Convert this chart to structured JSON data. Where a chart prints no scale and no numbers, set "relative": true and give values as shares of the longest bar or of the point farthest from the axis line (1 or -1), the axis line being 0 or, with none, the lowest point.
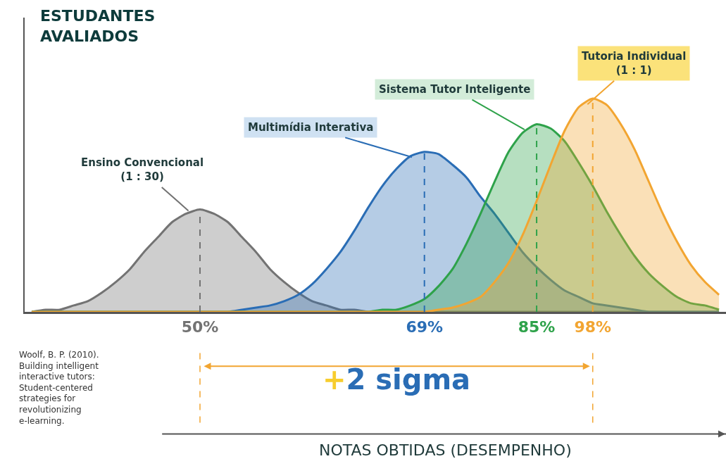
{
  "chart_data": {
    "type": "area",
    "relative": true,
    "ylabel": "ESTUDANTES\nAVALIADOS",
    "legend": false,
    "grid": false,
    "line_style": "solid",
    "marker": "none",
    "categories": [
      null,
      null,
      null,
      null,
      null,
      null,
      null,
      null,
      null,
      null,
      null,
      null,
      "50%",
      null,
      null,
      null,
      null,
      null,
      null,
      null,
      null,
      null,
      null,
      null,
      null,
      null,
      null,
      null,
      "69%",
      null,
      null,
      null,
      null,
      null,
      null,
      null,
      "85%",
      null,
      null,
      null,
      "98%",
      null,
      null,
      null,
      null,
      null,
      null,
      null,
      null,
      null
    ],
    "series": [
      {
        "name": "Ensino Convencional\n(1 : 30)",
        "color": "#737373",
        "values": [
          0,
          0.01,
          0.01,
          0.03,
          0.05,
          0.09,
          0.14,
          0.2,
          0.28,
          0.35,
          0.42,
          0.46,
          0.48,
          0.46,
          0.42,
          0.35,
          0.28,
          0.2,
          0.14,
          0.09,
          0.05,
          0.03,
          0.01,
          0.01,
          0,
          0,
          0,
          0,
          0,
          0,
          0,
          0,
          0,
          0,
          0,
          0,
          0,
          0,
          0,
          0,
          0,
          0,
          0,
          0,
          0,
          0,
          0,
          0,
          0,
          0
        ]
      },
      {
        "name": "Multimídia Interativa",
        "color": "#2a6db5",
        "values": [
          0,
          0,
          0,
          0,
          0,
          0,
          0,
          0,
          0,
          0,
          0,
          0,
          0,
          0,
          0,
          0.01,
          0.02,
          0.03,
          0.05,
          0.08,
          0.13,
          0.2,
          0.28,
          0.38,
          0.49,
          0.59,
          0.67,
          0.73,
          0.75,
          0.74,
          0.69,
          0.63,
          0.54,
          0.46,
          0.37,
          0.28,
          0.21,
          0.15,
          0.1,
          0.07,
          0.04,
          0.03,
          0.02,
          0.01,
          0,
          0,
          0,
          0,
          0,
          0
        ]
      },
      {
        "name": "Sistema Tutor Inteligente",
        "color": "#2ea24a",
        "values": [
          0,
          0,
          0,
          0,
          0,
          0,
          0,
          0,
          0,
          0,
          0,
          0,
          0,
          0,
          0,
          0,
          0,
          0,
          0,
          0,
          0,
          0,
          0,
          0,
          0,
          0.01,
          0.01,
          0.03,
          0.06,
          0.12,
          0.2,
          0.32,
          0.46,
          0.61,
          0.75,
          0.84,
          0.88,
          0.86,
          0.8,
          0.7,
          0.59,
          0.47,
          0.36,
          0.26,
          0.18,
          0.12,
          0.07,
          0.04,
          0.03,
          0.01
        ]
      },
      {
        "name": "Tutoria Individual\n(1 : 1)",
        "color": "#f2a531",
        "values": [
          0,
          0,
          0,
          0,
          0,
          0,
          0,
          0,
          0,
          0,
          0,
          0,
          0,
          0,
          0,
          0,
          0,
          0,
          0,
          0,
          0,
          0,
          0,
          0,
          0,
          0,
          0,
          0,
          0,
          0.01,
          0.02,
          0.04,
          0.07,
          0.14,
          0.23,
          0.36,
          0.52,
          0.69,
          0.85,
          0.96,
          1,
          0.97,
          0.88,
          0.76,
          0.61,
          0.46,
          0.33,
          0.22,
          0.14,
          0.08
        ]
      }
    ],
    "ref_lines": [
      {
        "axis": "x",
        "value": "50%",
        "color": "#737373",
        "line_style": "dashed"
      },
      {
        "axis": "x",
        "value": "69%",
        "color": "#2a6db5",
        "line_style": "dashed"
      },
      {
        "axis": "x",
        "value": "85%",
        "color": "#2ea24a",
        "line_style": "dashed"
      },
      {
        "axis": "x",
        "value": "98%",
        "color": "#f2a531",
        "line_style": "dashed"
      }
    ],
    "annotations": [
      "+2 sigma",
      "Woolf, B. P. (2010). Building intelligent interactive tutors: Student-centered strategies for revolutionizing e-learning.",
      "NOTAS OBTIDAS (DESEMPENHO)"
    ]
  }
}
